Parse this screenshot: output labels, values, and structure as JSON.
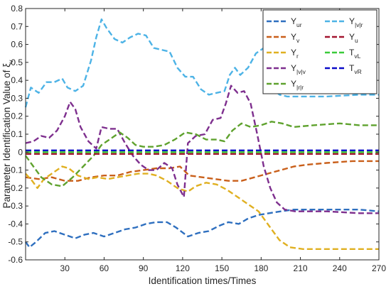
{
  "chart_data": {
    "type": "line",
    "xlabel": "Identification times/Times",
    "ylabel": "Parameter Identification Value of ξ",
    "ylabel_sub": "v",
    "xlim": [
      0,
      270
    ],
    "ylim": [
      -0.6,
      0.8
    ],
    "xticks": [
      30,
      60,
      90,
      120,
      150,
      180,
      210,
      240,
      270
    ],
    "yticks": [
      -0.6,
      -0.5,
      -0.4,
      -0.3,
      -0.2,
      -0.1,
      0,
      0.1,
      0.2,
      0.3,
      0.4,
      0.5,
      0.6,
      0.7,
      0.8
    ],
    "grid": false,
    "legend_position": "top-right",
    "series": [
      {
        "name": "Y",
        "sub": "ur",
        "color": "#2e6fbf",
        "dash": "8,4",
        "points": [
          [
            0,
            -0.5
          ],
          [
            3,
            -0.53
          ],
          [
            8,
            -0.5
          ],
          [
            15,
            -0.45
          ],
          [
            22,
            -0.44
          ],
          [
            30,
            -0.46
          ],
          [
            38,
            -0.48
          ],
          [
            45,
            -0.46
          ],
          [
            52,
            -0.45
          ],
          [
            60,
            -0.47
          ],
          [
            68,
            -0.45
          ],
          [
            76,
            -0.43
          ],
          [
            84,
            -0.42
          ],
          [
            92,
            -0.4
          ],
          [
            100,
            -0.39
          ],
          [
            108,
            -0.39
          ],
          [
            115,
            -0.42
          ],
          [
            124,
            -0.47
          ],
          [
            132,
            -0.45
          ],
          [
            140,
            -0.44
          ],
          [
            148,
            -0.41
          ],
          [
            155,
            -0.39
          ],
          [
            163,
            -0.4
          ],
          [
            170,
            -0.37
          ],
          [
            178,
            -0.35
          ],
          [
            186,
            -0.34
          ],
          [
            195,
            -0.33
          ],
          [
            205,
            -0.32
          ],
          [
            230,
            -0.32
          ],
          [
            255,
            -0.32
          ],
          [
            270,
            -0.33
          ]
        ]
      },
      {
        "name": "Y",
        "sub": "v",
        "color": "#c95f1a",
        "dash": "8,4",
        "points": [
          [
            0,
            -0.14
          ],
          [
            10,
            -0.15
          ],
          [
            20,
            -0.14
          ],
          [
            30,
            -0.16
          ],
          [
            40,
            -0.16
          ],
          [
            50,
            -0.14
          ],
          [
            60,
            -0.13
          ],
          [
            70,
            -0.13
          ],
          [
            80,
            -0.11
          ],
          [
            90,
            -0.1
          ],
          [
            100,
            -0.09
          ],
          [
            110,
            -0.09
          ],
          [
            118,
            -0.08
          ],
          [
            125,
            -0.13
          ],
          [
            135,
            -0.14
          ],
          [
            145,
            -0.15
          ],
          [
            155,
            -0.16
          ],
          [
            165,
            -0.16
          ],
          [
            175,
            -0.14
          ],
          [
            185,
            -0.12
          ],
          [
            195,
            -0.1
          ],
          [
            205,
            -0.08
          ],
          [
            215,
            -0.07
          ],
          [
            230,
            -0.06
          ],
          [
            250,
            -0.05
          ],
          [
            270,
            -0.05
          ]
        ]
      },
      {
        "name": "Y",
        "sub": "r",
        "color": "#e0b021",
        "dash": "8,4",
        "points": [
          [
            0,
            -0.12
          ],
          [
            5,
            -0.16
          ],
          [
            9,
            -0.2
          ],
          [
            14,
            -0.15
          ],
          [
            20,
            -0.12
          ],
          [
            28,
            -0.08
          ],
          [
            33,
            -0.09
          ],
          [
            40,
            -0.13
          ],
          [
            48,
            -0.15
          ],
          [
            55,
            -0.14
          ],
          [
            63,
            -0.15
          ],
          [
            70,
            -0.14
          ],
          [
            78,
            -0.13
          ],
          [
            86,
            -0.12
          ],
          [
            94,
            -0.12
          ],
          [
            100,
            -0.13
          ],
          [
            108,
            -0.16
          ],
          [
            116,
            -0.2
          ],
          [
            124,
            -0.22
          ],
          [
            130,
            -0.19
          ],
          [
            138,
            -0.17
          ],
          [
            146,
            -0.18
          ],
          [
            154,
            -0.21
          ],
          [
            162,
            -0.25
          ],
          [
            170,
            -0.29
          ],
          [
            178,
            -0.33
          ],
          [
            186,
            -0.41
          ],
          [
            194,
            -0.49
          ],
          [
            202,
            -0.53
          ],
          [
            212,
            -0.54
          ],
          [
            240,
            -0.54
          ],
          [
            270,
            -0.54
          ]
        ]
      },
      {
        "name": "Y",
        "sub": "|v|v",
        "color": "#7e2f8e",
        "dash": "8,4",
        "points": [
          [
            0,
            0.05
          ],
          [
            6,
            0.06
          ],
          [
            12,
            0.09
          ],
          [
            18,
            0.08
          ],
          [
            24,
            0.12
          ],
          [
            30,
            0.2
          ],
          [
            34,
            0.28
          ],
          [
            38,
            0.24
          ],
          [
            42,
            0.14
          ],
          [
            48,
            0.06
          ],
          [
            54,
            0.02
          ],
          [
            58,
            0.14
          ],
          [
            64,
            0.13
          ],
          [
            70,
            0.13
          ],
          [
            76,
            0.05
          ],
          [
            82,
            -0.02
          ],
          [
            88,
            -0.07
          ],
          [
            94,
            -0.1
          ],
          [
            100,
            -0.1
          ],
          [
            106,
            -0.06
          ],
          [
            112,
            -0.09
          ],
          [
            116,
            -0.18
          ],
          [
            121,
            -0.25
          ],
          [
            124,
            0.05
          ],
          [
            130,
            0.09
          ],
          [
            137,
            0.1
          ],
          [
            143,
            0.18
          ],
          [
            149,
            0.19
          ],
          [
            153,
            0.27
          ],
          [
            157,
            0.37
          ],
          [
            162,
            0.33
          ],
          [
            167,
            0.34
          ],
          [
            172,
            0.27
          ],
          [
            177,
            0.1
          ],
          [
            182,
            -0.08
          ],
          [
            187,
            -0.2
          ],
          [
            192,
            -0.28
          ],
          [
            198,
            -0.32
          ],
          [
            206,
            -0.33
          ],
          [
            230,
            -0.33
          ],
          [
            255,
            -0.34
          ],
          [
            270,
            -0.34
          ]
        ]
      },
      {
        "name": "Y",
        "sub": "|r|r",
        "color": "#5fa22e",
        "dash": "8,4",
        "points": [
          [
            0,
            -0.02
          ],
          [
            6,
            -0.08
          ],
          [
            12,
            -0.14
          ],
          [
            20,
            -0.18
          ],
          [
            28,
            -0.19
          ],
          [
            36,
            -0.14
          ],
          [
            44,
            -0.08
          ],
          [
            52,
            -0.02
          ],
          [
            58,
            0.04
          ],
          [
            66,
            0.08
          ],
          [
            72,
            0.11
          ],
          [
            78,
            0.08
          ],
          [
            84,
            0.04
          ],
          [
            90,
            0.03
          ],
          [
            98,
            0.03
          ],
          [
            106,
            0.04
          ],
          [
            114,
            0.07
          ],
          [
            122,
            0.11
          ],
          [
            130,
            0.1
          ],
          [
            138,
            0.07
          ],
          [
            146,
            0.07
          ],
          [
            152,
            0.06
          ],
          [
            158,
            0.12
          ],
          [
            165,
            0.16
          ],
          [
            172,
            0.14
          ],
          [
            180,
            0.15
          ],
          [
            188,
            0.17
          ],
          [
            196,
            0.16
          ],
          [
            205,
            0.14
          ],
          [
            220,
            0.15
          ],
          [
            240,
            0.16
          ],
          [
            255,
            0.15
          ],
          [
            270,
            0.15
          ]
        ]
      },
      {
        "name": "Y",
        "sub": "|v|r",
        "color": "#4db3e6",
        "dash": "8,4",
        "points": [
          [
            0,
            0.25
          ],
          [
            4,
            0.36
          ],
          [
            10,
            0.33
          ],
          [
            16,
            0.39
          ],
          [
            22,
            0.39
          ],
          [
            28,
            0.41
          ],
          [
            32,
            0.36
          ],
          [
            38,
            0.34
          ],
          [
            44,
            0.37
          ],
          [
            50,
            0.51
          ],
          [
            54,
            0.64
          ],
          [
            58,
            0.74
          ],
          [
            62,
            0.69
          ],
          [
            68,
            0.63
          ],
          [
            74,
            0.61
          ],
          [
            80,
            0.64
          ],
          [
            86,
            0.66
          ],
          [
            92,
            0.65
          ],
          [
            98,
            0.58
          ],
          [
            104,
            0.57
          ],
          [
            110,
            0.56
          ],
          [
            116,
            0.47
          ],
          [
            122,
            0.42
          ],
          [
            128,
            0.42
          ],
          [
            134,
            0.35
          ],
          [
            140,
            0.32
          ],
          [
            146,
            0.33
          ],
          [
            152,
            0.34
          ],
          [
            156,
            0.43
          ],
          [
            160,
            0.47
          ],
          [
            164,
            0.43
          ],
          [
            170,
            0.47
          ],
          [
            176,
            0.55
          ],
          [
            182,
            0.58
          ],
          [
            188,
            0.36
          ],
          [
            194,
            0.32
          ],
          [
            200,
            0.31
          ],
          [
            230,
            0.31
          ],
          [
            255,
            0.32
          ],
          [
            270,
            0.32
          ]
        ]
      },
      {
        "name": "Y",
        "sub": "u",
        "color": "#a2142f",
        "dash": "8,4",
        "points": [
          [
            0,
            -0.01
          ],
          [
            270,
            -0.01
          ]
        ]
      },
      {
        "name": "T",
        "sub": "vL",
        "color": "#3acb3a",
        "dash": "8,4",
        "points": [
          [
            0,
            0
          ],
          [
            270,
            0
          ]
        ]
      },
      {
        "name": "T",
        "sub": "vR",
        "color": "#0a0ac8",
        "dash": "8,4",
        "points": [
          [
            0,
            0.01
          ],
          [
            270,
            0.01
          ]
        ]
      }
    ]
  }
}
